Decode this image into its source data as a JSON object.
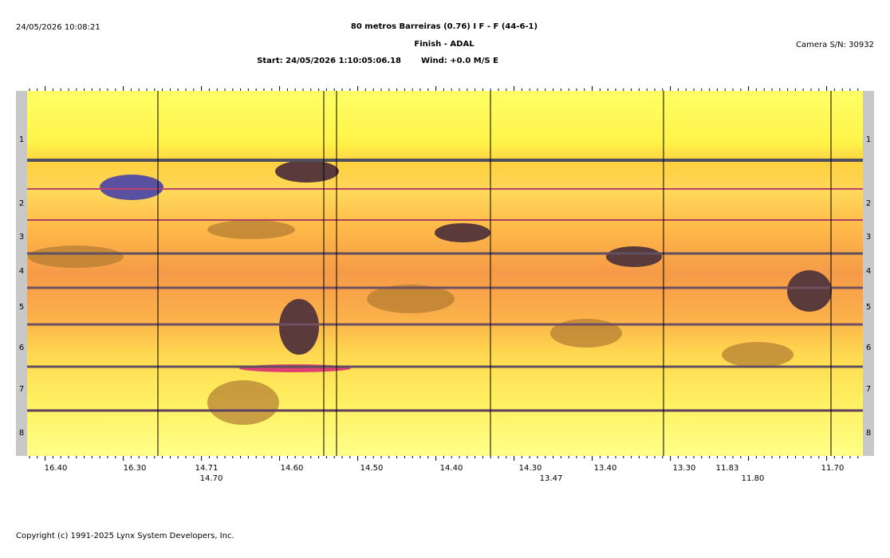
{
  "header": {
    "timestamp": "24/05/2026 10:08:21",
    "title": "80 metros Barreiras (0.76) I F - F (44-6-1)",
    "subtitle": "Finish - ADAL",
    "start": "Start: 24/05/2026 1:10:05:06.18",
    "wind": "Wind: +0.0 M/S E",
    "camera": "Camera S/N: 30932"
  },
  "lanes": [
    "1",
    "2",
    "3",
    "4",
    "5",
    "6",
    "7",
    "8"
  ],
  "time_scale": {
    "primary": [
      "16.40",
      "16.30",
      "14.71",
      "14.60",
      "14.50",
      "14.40",
      "14.30",
      "13.40",
      "13.30",
      "11.83",
      "11.70"
    ],
    "secondary": [
      "14.70",
      "13.47",
      "11.80"
    ]
  },
  "footer": {
    "copyright": "Copyright (c) 1991-2025 Lynx System Developers, Inc."
  }
}
